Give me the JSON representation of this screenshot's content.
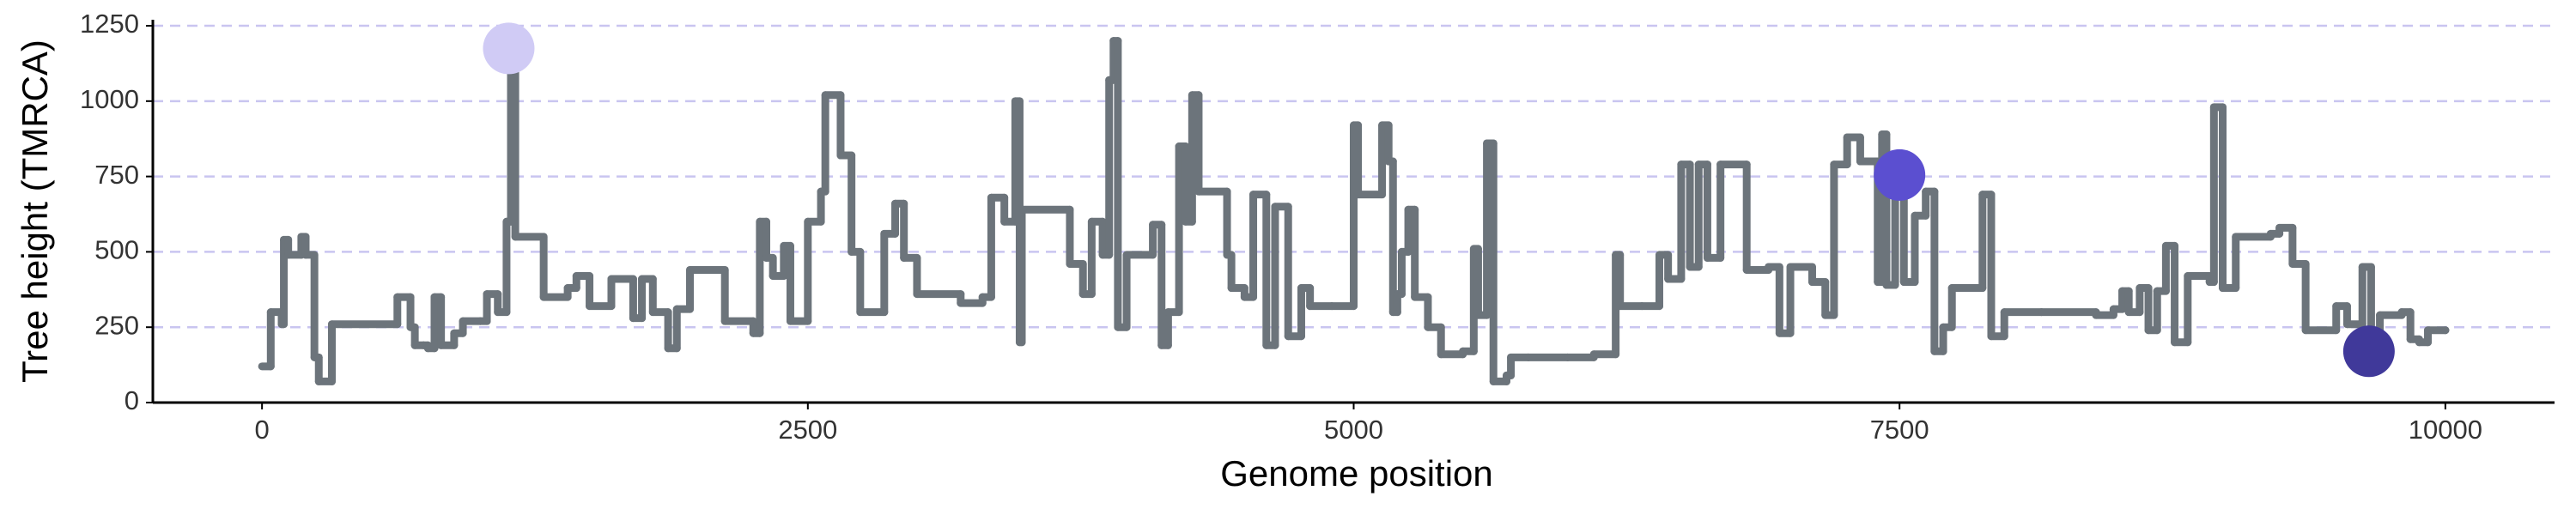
{
  "chart_data": {
    "type": "line",
    "x_label": "Genome position",
    "y_label": "Tree height (TMRCA)",
    "xlim": [
      -500,
      10500
    ],
    "ylim": [
      0,
      1270
    ],
    "xticks": [
      0,
      2500,
      5000,
      7500,
      10000
    ],
    "yticks": [
      0,
      250,
      500,
      750,
      1000,
      1250
    ],
    "grid": true,
    "grid_color": "#c9c5f0",
    "x": [
      0,
      40,
      90,
      100,
      120,
      180,
      200,
      240,
      260,
      320,
      620,
      680,
      700,
      740,
      760,
      790,
      820,
      880,
      920,
      1000,
      1030,
      1080,
      1120,
      1140,
      1160,
      1290,
      1400,
      1440,
      1500,
      1600,
      1700,
      1740,
      1790,
      1860,
      1900,
      1960,
      2120,
      2250,
      2280,
      2310,
      2340,
      2390,
      2420,
      2500,
      2560,
      2580,
      2650,
      2700,
      2740,
      2850,
      2900,
      2940,
      3000,
      3200,
      3300,
      3340,
      3400,
      3450,
      3470,
      3480,
      3700,
      3760,
      3800,
      3850,
      3880,
      3900,
      3920,
      3960,
      4080,
      4120,
      4150,
      4200,
      4230,
      4260,
      4290,
      4420,
      4440,
      4500,
      4540,
      4600,
      4640,
      4700,
      4760,
      4800,
      4900,
      5000,
      5020,
      5130,
      5160,
      5180,
      5200,
      5220,
      5250,
      5280,
      5340,
      5400,
      5500,
      5550,
      5570,
      5610,
      5640,
      5700,
      5720,
      5800,
      5980,
      6100,
      6200,
      6220,
      6320,
      6400,
      6440,
      6500,
      6540,
      6580,
      6620,
      6680,
      6800,
      6900,
      6950,
      7000,
      7100,
      7160,
      7200,
      7260,
      7320,
      7400,
      7420,
      7440,
      7480,
      7520,
      7570,
      7620,
      7660,
      7700,
      7740,
      7880,
      7920,
      7980,
      8150,
      8400,
      8480,
      8520,
      8550,
      8600,
      8640,
      8680,
      8720,
      8760,
      8820,
      8920,
      8940,
      8980,
      9040,
      9200,
      9240,
      9300,
      9360,
      9500,
      9550,
      9620,
      9660,
      9700,
      9800,
      9840,
      9880,
      9920,
      10000
    ],
    "series": [
      {
        "color": "#6c747b",
        "values": [
          120,
          300,
          260,
          540,
          490,
          550,
          490,
          150,
          70,
          260,
          350,
          250,
          190,
          190,
          180,
          350,
          190,
          230,
          270,
          270,
          360,
          300,
          600,
          1175,
          550,
          350,
          380,
          420,
          320,
          410,
          280,
          410,
          300,
          180,
          310,
          440,
          270,
          230,
          600,
          480,
          420,
          520,
          270,
          600,
          700,
          1020,
          820,
          500,
          300,
          560,
          660,
          480,
          360,
          330,
          350,
          680,
          600,
          1000,
          200,
          640,
          460,
          360,
          600,
          490,
          1070,
          1200,
          250,
          490,
          590,
          190,
          300,
          850,
          600,
          1020,
          700,
          490,
          380,
          350,
          690,
          190,
          650,
          220,
          380,
          320,
          320,
          920,
          690,
          920,
          800,
          300,
          360,
          500,
          640,
          350,
          250,
          160,
          170,
          510,
          290,
          860,
          70,
          90,
          150,
          150,
          150,
          160,
          490,
          320,
          320,
          490,
          410,
          790,
          450,
          790,
          480,
          790,
          440,
          450,
          230,
          450,
          400,
          290,
          790,
          880,
          800,
          400,
          890,
          390,
          800,
          400,
          620,
          700,
          170,
          250,
          380,
          690,
          220,
          300,
          300,
          290,
          310,
          370,
          300,
          380,
          240,
          370,
          520,
          200,
          420,
          400,
          980,
          380,
          550,
          560,
          580,
          460,
          240,
          320,
          260,
          450,
          200,
          290,
          300,
          210,
          200,
          240,
          240
        ]
      }
    ],
    "highlights": {
      "x": [
        1130,
        7500,
        9650
      ],
      "values": [
        1175,
        755,
        170
      ],
      "colors": [
        "#d0cbf5",
        "#5b4fd0",
        "#40399a"
      ]
    }
  }
}
